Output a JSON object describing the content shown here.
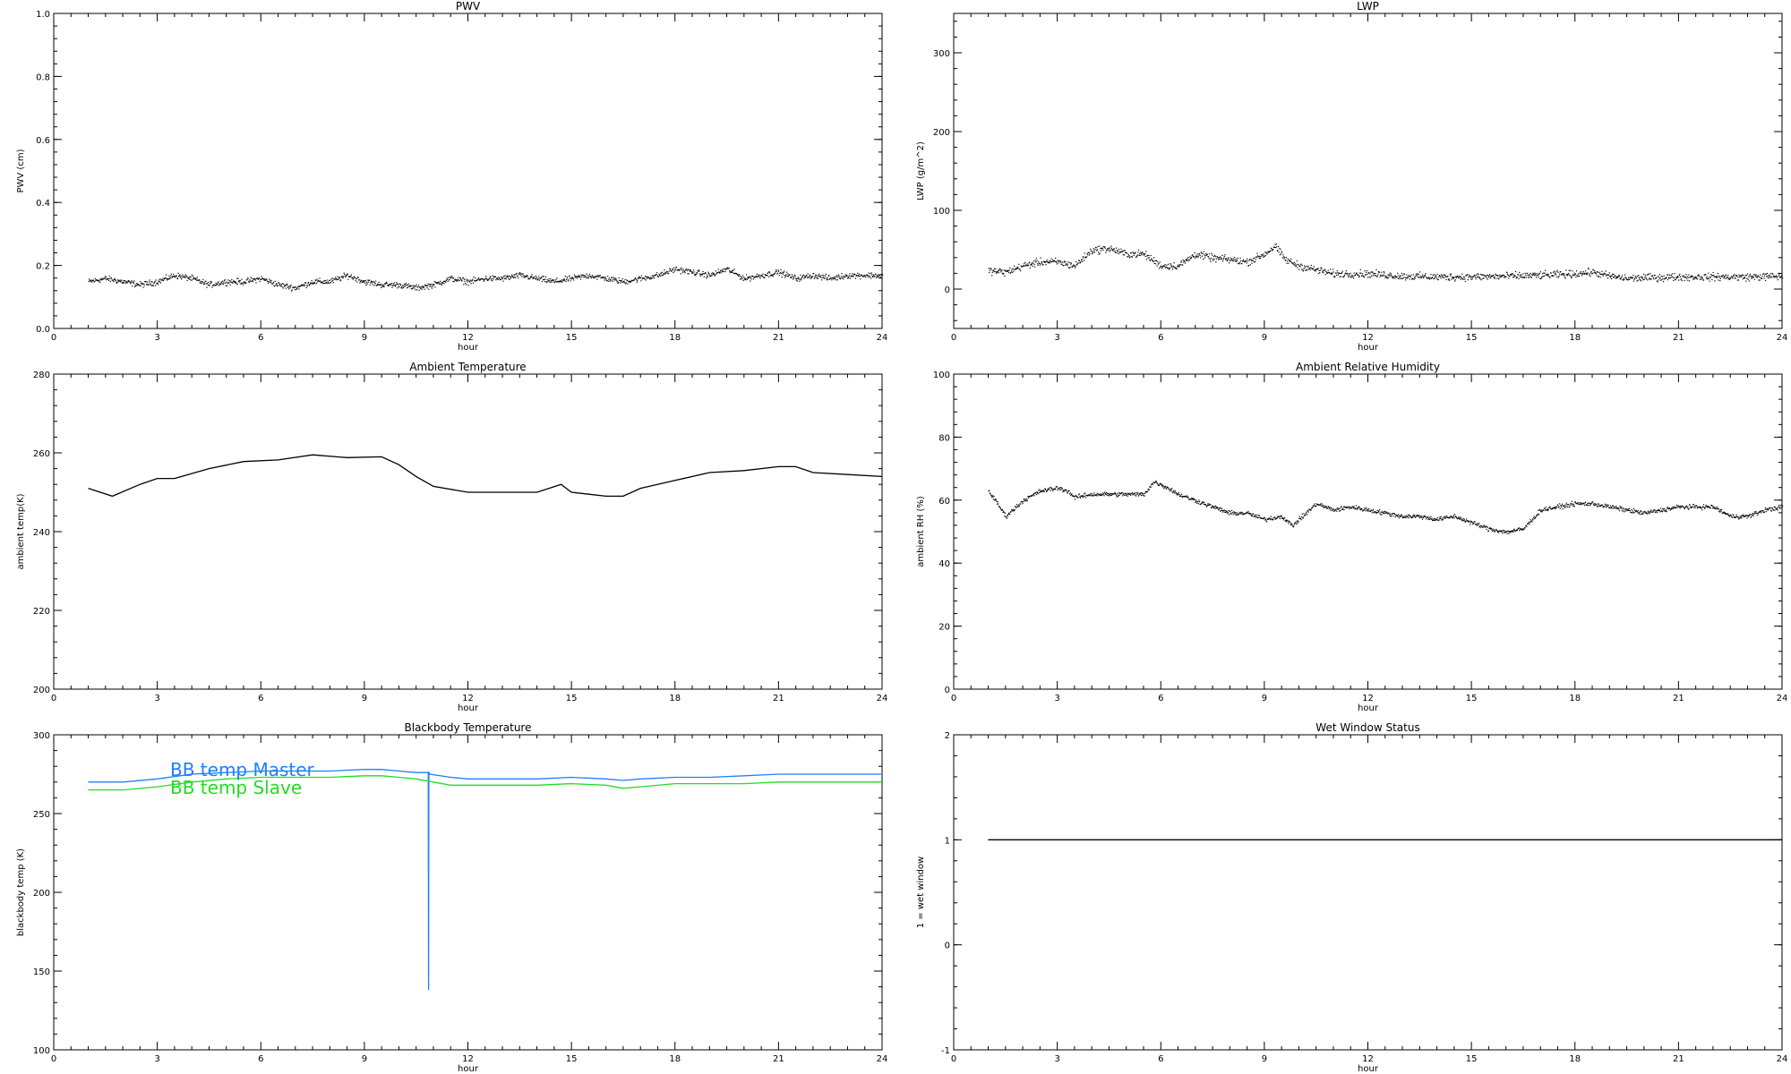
{
  "chart_data": [
    {
      "type": "scatter",
      "title": "PWV",
      "xlabel": "hour",
      "ylabel": "PWV (cm)",
      "xlim": [
        0,
        24
      ],
      "ylim": [
        0.0,
        1.0
      ],
      "xticks": [
        "0",
        "3",
        "6",
        "9",
        "12",
        "15",
        "18",
        "21",
        "24"
      ],
      "yticks": [
        "0.0",
        "0.2",
        "0.4",
        "0.6",
        "0.8",
        "1.0"
      ],
      "series": [
        {
          "color": "#000000",
          "noise": 0.008,
          "x": [
            1.0,
            1.5,
            2.0,
            2.5,
            3.0,
            3.5,
            4.0,
            4.5,
            5.0,
            5.5,
            6.0,
            6.5,
            7.0,
            7.5,
            8.0,
            8.5,
            9.0,
            9.5,
            10.0,
            10.5,
            11.0,
            11.5,
            12.0,
            12.5,
            13.0,
            13.5,
            14.0,
            14.5,
            15.0,
            15.5,
            16.0,
            16.5,
            17.0,
            17.5,
            18.0,
            18.5,
            19.0,
            19.5,
            20.0,
            20.5,
            21.0,
            21.5,
            22.0,
            22.5,
            23.0,
            23.5,
            24.0
          ],
          "y": [
            0.15,
            0.16,
            0.15,
            0.14,
            0.15,
            0.17,
            0.16,
            0.14,
            0.15,
            0.15,
            0.16,
            0.14,
            0.13,
            0.15,
            0.15,
            0.17,
            0.15,
            0.14,
            0.14,
            0.13,
            0.14,
            0.16,
            0.15,
            0.16,
            0.16,
            0.17,
            0.16,
            0.15,
            0.16,
            0.17,
            0.16,
            0.15,
            0.16,
            0.17,
            0.19,
            0.18,
            0.17,
            0.19,
            0.16,
            0.17,
            0.18,
            0.16,
            0.17,
            0.16,
            0.17,
            0.17,
            0.17
          ]
        }
      ]
    },
    {
      "type": "scatter",
      "title": "LWP",
      "xlabel": "hour",
      "ylabel": "LWP (g/m^2)",
      "xlim": [
        0,
        24
      ],
      "ylim": [
        -50,
        350
      ],
      "xticks": [
        "0",
        "3",
        "6",
        "9",
        "12",
        "15",
        "18",
        "21",
        "24"
      ],
      "yticks": [
        "0",
        "100",
        "200",
        "300"
      ],
      "series": [
        {
          "color": "#000000",
          "noise": 4,
          "x": [
            1.0,
            1.5,
            2.0,
            2.5,
            3.0,
            3.5,
            4.0,
            4.5,
            5.0,
            5.5,
            6.0,
            6.5,
            7.0,
            7.5,
            8.0,
            8.5,
            9.0,
            9.3,
            9.6,
            10.0,
            10.5,
            11.0,
            11.5,
            12.0,
            13.0,
            14.0,
            15.0,
            16.0,
            17.0,
            18.0,
            18.5,
            19.0,
            19.5,
            20.0,
            21.0,
            22.0,
            23.0,
            24.0
          ],
          "y": [
            24,
            22,
            30,
            35,
            35,
            30,
            50,
            52,
            45,
            45,
            30,
            30,
            45,
            40,
            38,
            35,
            45,
            55,
            38,
            30,
            25,
            20,
            20,
            20,
            17,
            16,
            16,
            17,
            18,
            20,
            22,
            17,
            14,
            15,
            16,
            16,
            16,
            17
          ]
        }
      ]
    },
    {
      "type": "line",
      "title": "Ambient Temperature",
      "xlabel": "hour",
      "ylabel": "ambient temp(K)",
      "xlim": [
        0,
        24
      ],
      "ylim": [
        200,
        280
      ],
      "xticks": [
        "0",
        "3",
        "6",
        "9",
        "12",
        "15",
        "18",
        "21",
        "24"
      ],
      "yticks": [
        "200",
        "220",
        "240",
        "260",
        "280"
      ],
      "series": [
        {
          "color": "#000000",
          "x": [
            1.0,
            1.7,
            2.5,
            3.0,
            3.5,
            4.5,
            5.5,
            6.5,
            7.5,
            8.5,
            9.5,
            10.0,
            10.5,
            11.0,
            12.0,
            13.0,
            14.0,
            14.7,
            15.0,
            15.5,
            16.0,
            16.5,
            17.0,
            18.0,
            19.0,
            20.0,
            21.0,
            21.5,
            22.0,
            23.0,
            24.0
          ],
          "y": [
            251,
            249,
            252,
            253.5,
            253.5,
            256,
            257.8,
            258.2,
            259.5,
            258.8,
            259,
            257,
            254,
            251.5,
            250,
            250,
            250,
            252,
            250,
            249.5,
            249,
            249,
            251,
            253,
            255,
            255.5,
            256.5,
            256.5,
            255,
            254.5,
            254
          ]
        }
      ]
    },
    {
      "type": "scatter",
      "title": "Ambient Relative Humidity",
      "xlabel": "hour",
      "ylabel": "ambient RH (%)",
      "xlim": [
        0,
        24
      ],
      "ylim": [
        0,
        100
      ],
      "xticks": [
        "0",
        "3",
        "6",
        "9",
        "12",
        "15",
        "18",
        "21",
        "24"
      ],
      "yticks": [
        "0",
        "20",
        "40",
        "60",
        "80",
        "100"
      ],
      "series": [
        {
          "color": "#000000",
          "noise": 0.6,
          "x": [
            1.0,
            1.2,
            1.5,
            2.0,
            2.5,
            3.0,
            3.3,
            3.5,
            4.0,
            4.5,
            5.0,
            5.5,
            5.8,
            6.2,
            6.5,
            7.0,
            7.5,
            8.0,
            8.5,
            9.0,
            9.5,
            9.8,
            10.2,
            10.5,
            11.0,
            11.5,
            12.0,
            12.5,
            13.0,
            13.5,
            14.0,
            14.5,
            15.0,
            15.5,
            16.0,
            16.5,
            17.0,
            17.5,
            18.0,
            18.5,
            19.0,
            19.5,
            20.0,
            21.0,
            22.0,
            22.5,
            23.0,
            23.5,
            24.0
          ],
          "y": [
            63,
            60,
            55,
            60,
            63,
            64,
            63,
            61,
            62,
            62,
            62,
            62,
            66,
            64,
            62,
            60,
            58,
            56,
            56,
            54,
            55,
            52,
            56,
            59,
            57,
            58,
            57,
            56,
            55,
            55,
            54,
            55,
            53,
            51,
            50,
            51,
            57,
            58,
            59,
            59,
            58,
            57,
            56,
            58,
            58,
            55,
            55,
            57,
            58
          ]
        }
      ]
    },
    {
      "type": "line",
      "title": "Blackbody Temperature",
      "xlabel": "hour",
      "ylabel": "blackbody temp (K)",
      "xlim": [
        0,
        24
      ],
      "ylim": [
        100,
        300
      ],
      "xticks": [
        "0",
        "3",
        "6",
        "9",
        "12",
        "15",
        "18",
        "21",
        "24"
      ],
      "yticks": [
        "100",
        "150",
        "200",
        "250",
        "300"
      ],
      "legend": "top-left",
      "series": [
        {
          "name": "BB temp Master",
          "color": "#1f7fff",
          "x": [
            1.0,
            2.0,
            3.0,
            4.0,
            5.0,
            6.0,
            7.0,
            8.0,
            9.0,
            9.5,
            10.0,
            10.5,
            10.85,
            10.86,
            10.87,
            10.9,
            11.5,
            12.0,
            13.0,
            14.0,
            15.0,
            16.0,
            16.5,
            17.0,
            18.0,
            19.0,
            20.0,
            21.0,
            22.0,
            23.0,
            24.0
          ],
          "y": [
            270,
            270,
            272,
            275,
            276,
            277,
            277,
            277,
            278,
            278,
            277,
            276,
            276,
            138,
            276,
            275,
            273,
            272,
            272,
            272,
            273,
            272,
            271,
            272,
            273,
            273,
            274,
            275,
            275,
            275,
            275
          ]
        },
        {
          "name": "BB temp Slave",
          "color": "#22dd22",
          "x": [
            1.0,
            2.0,
            3.0,
            4.0,
            5.0,
            6.0,
            7.0,
            8.0,
            9.0,
            9.5,
            10.0,
            10.5,
            11.0,
            11.5,
            12.0,
            13.0,
            14.0,
            15.0,
            16.0,
            16.5,
            17.0,
            18.0,
            19.0,
            20.0,
            21.0,
            22.0,
            23.0,
            24.0
          ],
          "y": [
            265,
            265,
            267,
            270,
            272,
            273,
            273,
            273,
            274,
            274,
            273,
            272,
            270,
            268,
            268,
            268,
            268,
            269,
            268,
            266,
            267,
            269,
            269,
            269,
            270,
            270,
            270,
            270
          ]
        }
      ]
    },
    {
      "type": "line",
      "title": "Wet Window Status",
      "xlabel": "hour",
      "ylabel": "1 = wet window",
      "xlim": [
        0,
        24
      ],
      "ylim": [
        -1,
        2
      ],
      "xticks": [
        "0",
        "3",
        "6",
        "9",
        "12",
        "15",
        "18",
        "21",
        "24"
      ],
      "yticks": [
        "-1",
        "0",
        "1",
        "2"
      ],
      "series": [
        {
          "color": "#000000",
          "x": [
            1.0,
            24.0
          ],
          "y": [
            1,
            1
          ]
        }
      ]
    }
  ]
}
